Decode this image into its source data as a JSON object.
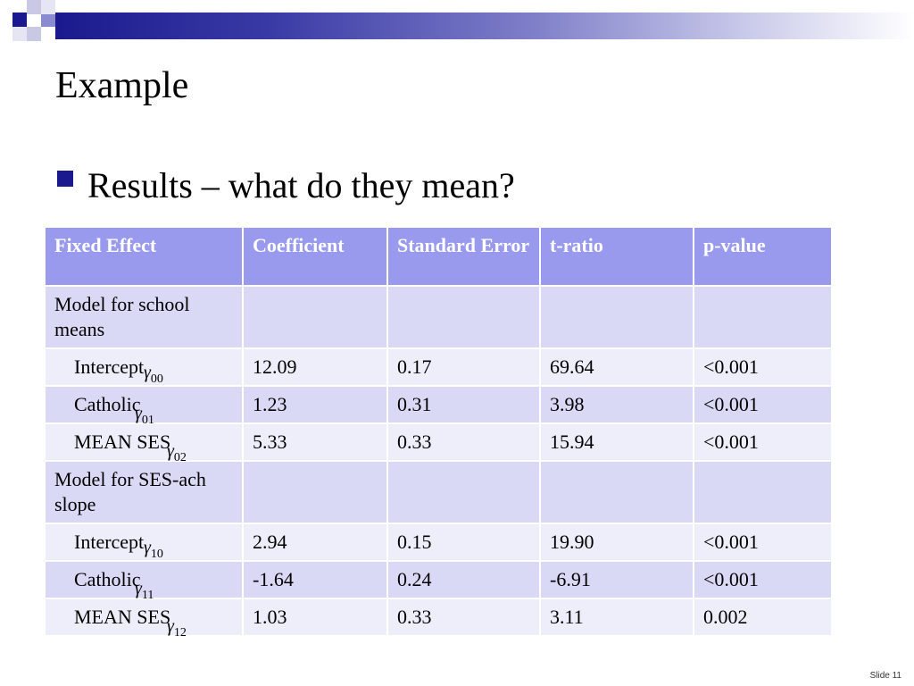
{
  "slide": {
    "title": "Example",
    "bullet": "Results – what do they mean?",
    "slide_number": "Slide 11"
  },
  "table": {
    "headers": [
      "Fixed Effect",
      "Coefficient",
      "Standard Error",
      "t-ratio",
      "p-value"
    ],
    "rows": [
      {
        "label": "Model for school means",
        "symbol": "",
        "sub": "",
        "coef": "",
        "se": "",
        "t": "",
        "p": ""
      },
      {
        "label": "Intercept",
        "symbol": "γ",
        "sub": "00",
        "coef": "12.09",
        "se": "0.17",
        "t": "69.64",
        "p": "<0.001"
      },
      {
        "label": "Catholic",
        "symbol": "γ",
        "sub": "01",
        "coef": "1.23",
        "se": "0.31",
        "t": "3.98",
        "p": "<0.001"
      },
      {
        "label": "MEAN SES",
        "symbol": "γ",
        "sub": "02",
        "coef": "5.33",
        "se": "0.33",
        "t": "15.94",
        "p": "<0.001"
      },
      {
        "label": "Model for SES-ach slope",
        "symbol": "",
        "sub": "",
        "coef": "",
        "se": "",
        "t": "",
        "p": ""
      },
      {
        "label": "Intercept",
        "symbol": "γ",
        "sub": "10",
        "coef": "2.94",
        "se": "0.15",
        "t": "19.90",
        "p": "<0.001"
      },
      {
        "label": "Catholic",
        "symbol": "γ",
        "sub": "11",
        "coef": "-1.64",
        "se": "0.24",
        "t": "-6.91",
        "p": "<0.001"
      },
      {
        "label": "MEAN SES",
        "symbol": "γ",
        "sub": "12",
        "coef": "1.03",
        "se": "0.33",
        "t": "3.11",
        "p": "0.002"
      }
    ]
  }
}
